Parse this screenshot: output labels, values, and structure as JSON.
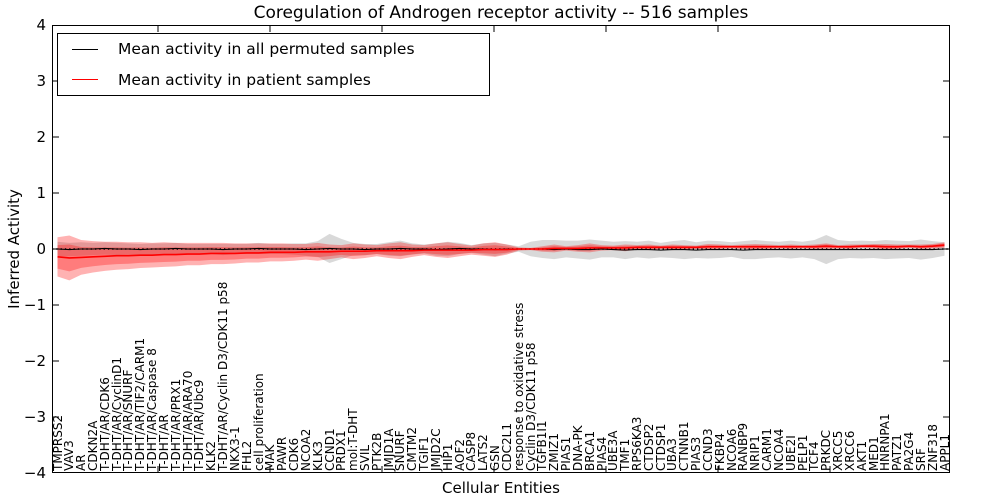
{
  "chart_data": {
    "type": "line",
    "title": "Coregulation of Androgen receptor activity -- 516 samples",
    "xlabel": "Cellular Entities",
    "ylabel": "Inferred Activity",
    "ylim": [
      -4,
      4
    ],
    "yticks": [
      4,
      3,
      2,
      1,
      0,
      -1,
      -2,
      -3,
      -4
    ],
    "ytick_labels": [
      "4",
      "3",
      "2",
      "1",
      "0",
      "−1",
      "−2",
      "−3",
      "−4"
    ],
    "grid": false,
    "legend_position": "upper left",
    "axis_color": "#000000",
    "background_color": "#ffffff",
    "categories": [
      "TMPRSS2",
      "VAV3",
      "AR",
      "CDKN2A",
      "T-DHT/AR/CDK6",
      "T-DHT/AR/CyclinD1",
      "T-DHT/AR/SNURF",
      "T-DHT/AR/TIF2/CARM1",
      "T-DHT/AR/Caspase 8",
      "T-DHT/AR",
      "T-DHT/AR/PRX1",
      "T-DHT/AR/ARA70",
      "T-DHT/AR/Ubc9",
      "KLK2",
      "T-DHT/AR/Cyclin D3/CDK11 p58",
      "NKX3-1",
      "FHL2",
      "cell proliferation",
      "MAK",
      "PAWR",
      "CDK6",
      "NCOA2",
      "KLK3",
      "CCND1",
      "PRDX1",
      "mol:T-DHT",
      "SVIL",
      "PTK2B",
      "JMJD1A",
      "SNURF",
      "CMTM2",
      "TGIF1",
      "JMJD2C",
      "HIP1",
      "AOF2",
      "CASP8",
      "LATS2",
      "GSN",
      "CDC2L1",
      "response to oxidative stress",
      "Cyclin D3/CDK11 p58",
      "TGFB1I1",
      "ZMIZ1",
      "PIAS1",
      "DNA-PK",
      "BRCA1",
      "PIAS4",
      "UBE3A",
      "TMF1",
      "RPS6KA3",
      "CTDSP2",
      "CTDSP1",
      "UBA3",
      "CTNNB1",
      "PIAS3",
      "CCND3",
      "FKBP4",
      "NCOA6",
      "RANBP9",
      "NRIP1",
      "CARM1",
      "NCOA4",
      "UBE2I",
      "PELP1",
      "TCF4",
      "PRKDC",
      "XRCC5",
      "XRCC6",
      "AKT1",
      "MED1",
      "HNRNPA1",
      "PATZ1",
      "PA2G4",
      "SRF",
      "ZNF318",
      "APPL1"
    ],
    "series": [
      {
        "name": "Mean activity in all permuted samples",
        "line_color": "#000000",
        "band_color": "#aaaaaa",
        "values": [
          0.0,
          -0.01,
          0.0,
          0.0,
          0.01,
          0.0,
          0.0,
          -0.01,
          0.0,
          0.0,
          0.01,
          0.0,
          0.0,
          0.0,
          -0.01,
          0.0,
          0.0,
          0.01,
          0.0,
          0.0,
          0.0,
          -0.01,
          0.0,
          0.01,
          0.0,
          0.0,
          -0.01,
          0.0,
          0.0,
          0.01,
          0.0,
          0.0,
          -0.01,
          0.0,
          0.01,
          0.0,
          0.0,
          -0.01,
          0.0,
          0.0,
          0.0,
          0.0,
          -0.01,
          0.0,
          -0.01,
          -0.01,
          0.0,
          -0.01,
          -0.02,
          -0.01,
          -0.01,
          -0.02,
          -0.01,
          -0.01,
          -0.02,
          -0.01,
          -0.01,
          -0.01,
          -0.02,
          -0.01,
          -0.01,
          -0.01,
          -0.01,
          -0.01,
          -0.01,
          -0.01,
          -0.01,
          -0.01,
          -0.01,
          -0.01,
          -0.01,
          -0.01,
          -0.01,
          -0.01,
          -0.01,
          0.0
        ],
        "band": [
          0.13,
          0.12,
          0.12,
          0.11,
          0.11,
          0.11,
          0.1,
          0.1,
          0.1,
          0.1,
          0.1,
          0.09,
          0.09,
          0.09,
          0.1,
          0.09,
          0.09,
          0.1,
          0.09,
          0.09,
          0.1,
          0.11,
          0.14,
          0.26,
          0.18,
          0.11,
          0.1,
          0.09,
          0.12,
          0.14,
          0.1,
          0.08,
          0.11,
          0.13,
          0.1,
          0.07,
          0.1,
          0.12,
          0.08,
          0.05,
          0.13,
          0.16,
          0.17,
          0.15,
          0.16,
          0.18,
          0.15,
          0.14,
          0.16,
          0.14,
          0.16,
          0.13,
          0.15,
          0.17,
          0.14,
          0.16,
          0.15,
          0.13,
          0.16,
          0.17,
          0.15,
          0.14,
          0.16,
          0.14,
          0.17,
          0.26,
          0.17,
          0.15,
          0.16,
          0.15,
          0.17,
          0.16,
          0.15,
          0.18,
          0.15,
          0.12
        ]
      },
      {
        "name": "Mean activity in patient samples",
        "line_color": "#ff0000",
        "band_color": "#ff0000",
        "values": [
          -0.14,
          -0.16,
          -0.15,
          -0.14,
          -0.13,
          -0.12,
          -0.12,
          -0.11,
          -0.11,
          -0.1,
          -0.1,
          -0.09,
          -0.09,
          -0.08,
          -0.08,
          -0.08,
          -0.07,
          -0.07,
          -0.06,
          -0.06,
          -0.06,
          -0.05,
          -0.05,
          -0.05,
          -0.04,
          -0.04,
          -0.04,
          -0.03,
          -0.03,
          -0.03,
          -0.03,
          -0.02,
          -0.02,
          -0.02,
          -0.02,
          -0.02,
          -0.01,
          -0.01,
          -0.01,
          0.0,
          0.0,
          0.0,
          0.01,
          0.01,
          0.01,
          0.02,
          0.02,
          0.02,
          0.02,
          0.03,
          0.03,
          0.03,
          0.03,
          0.03,
          0.03,
          0.04,
          0.04,
          0.04,
          0.04,
          0.04,
          0.04,
          0.04,
          0.04,
          0.04,
          0.04,
          0.05,
          0.04,
          0.04,
          0.05,
          0.05,
          0.04,
          0.04,
          0.05,
          0.04,
          0.05,
          0.07
        ],
        "band": [
          0.35,
          0.4,
          0.31,
          0.28,
          0.26,
          0.25,
          0.24,
          0.23,
          0.22,
          0.22,
          0.21,
          0.2,
          0.2,
          0.19,
          0.19,
          0.18,
          0.17,
          0.17,
          0.16,
          0.16,
          0.15,
          0.14,
          0.16,
          0.13,
          0.11,
          0.14,
          0.12,
          0.1,
          0.13,
          0.15,
          0.11,
          0.09,
          0.12,
          0.14,
          0.11,
          0.08,
          0.11,
          0.13,
          0.09,
          0.03,
          0.02,
          0.05,
          0.07,
          0.04,
          0.06,
          0.08,
          0.05,
          0.04,
          0.06,
          0.04,
          0.05,
          0.03,
          0.05,
          0.04,
          0.03,
          0.05,
          0.04,
          0.03,
          0.04,
          0.05,
          0.04,
          0.03,
          0.04,
          0.03,
          0.04,
          0.05,
          0.03,
          0.04,
          0.03,
          0.04,
          0.05,
          0.04,
          0.03,
          0.04,
          0.04,
          0.05
        ]
      }
    ],
    "zero_line_style": "dotted"
  }
}
